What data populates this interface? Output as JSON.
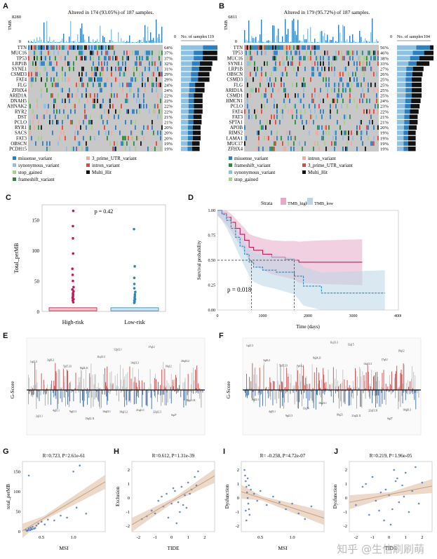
{
  "labels": {
    "A": "A",
    "B": "B",
    "C": "C",
    "D": "D",
    "E": "E",
    "F": "F",
    "G": "G",
    "H": "H",
    "I": "I",
    "J": "J"
  },
  "panelA": {
    "title": "Altered in 174 (93.05%) of 187 samples.",
    "tmb_label": "TMB",
    "tmb_max": "8280",
    "tmb_min": "0",
    "nos_label": "No. of samples",
    "nos_min": "0",
    "nos_max": "119",
    "genes": [
      "TTN",
      "MUC16",
      "TP53",
      "LRP1B",
      "SYNE1",
      "CSMD3",
      "FAT4",
      "FLG",
      "ZFHX4",
      "ARID1A",
      "DNAH5",
      "AHNAK2",
      "RYR2",
      "DST",
      "PCLO",
      "RYR1",
      "SACS",
      "FAT3",
      "OBSCN",
      "PCDH15"
    ],
    "pcts": [
      "64%",
      "37%",
      "37%",
      "32%",
      "31%",
      "29%",
      "29%",
      "24%",
      "24%",
      "22%",
      "22%",
      "22%",
      "22%",
      "21%",
      "21%",
      "20%",
      "20%",
      "20%",
      "19%",
      "19%"
    ],
    "legend": [
      "missense_variant",
      "3_prime_UTR_variant",
      "synonymous_variant",
      "intron_variant",
      "stop_gained",
      "Multi_Hit",
      "frameshift_variant"
    ]
  },
  "panelB": {
    "title": "Altered in 179 (95.72%) of 187 samples.",
    "tmb_label": "TMB",
    "tmb_max": "6811",
    "tmb_min": "0",
    "nos_label": "No. of samples",
    "nos_min": "0",
    "nos_max": "104",
    "genes": [
      "TTN",
      "TP53",
      "MUC16",
      "SYNE1",
      "LRP1B",
      "OBSCN",
      "CSMD3",
      "FLG",
      "ARID1A",
      "CSMD1",
      "HMCN1",
      "PCLO",
      "FAT4",
      "FAT3",
      "SPTA1",
      "APOB",
      "RIMS2",
      "LAMA1",
      "MUC17",
      "ZFHX4"
    ],
    "pcts": [
      "56%",
      "46%",
      "38%",
      "33%",
      "27%",
      "26%",
      "25%",
      "25%",
      "25%",
      "25%",
      "24%",
      "23%",
      "22%",
      "21%",
      "21%",
      "20%",
      "19%",
      "19%",
      "19%",
      "19%"
    ],
    "legend": [
      "missense_variant",
      "intron_variant",
      "frameshift_variant",
      "3_prime_UTR_variant",
      "synonymous_variant",
      "Multi_Hit",
      "stop_gained"
    ]
  },
  "colors": {
    "missense": "#2e7fbf",
    "utr": "#f4a9a0",
    "synonymous": "#8fc1e3",
    "intron": "#e8443a",
    "stop": "#a8d08d",
    "multi": "#111111",
    "frameshift": "#2e8b3e",
    "grey": "#c8c8c8",
    "high": "#c2185b",
    "low": "#2a86b8"
  },
  "chart_data": [
    {
      "panel": "C",
      "type": "box",
      "title": "p = 0.42",
      "ylabel": "Total_perMB",
      "categories": [
        "High-risk",
        "Low-risk"
      ],
      "ylim": [
        0,
        175
      ],
      "yticks": [
        "0",
        "50",
        "100",
        "150"
      ],
      "outliers": [
        [
          15,
          18,
          20,
          22,
          24,
          26,
          28,
          30,
          33,
          36,
          40,
          50,
          60,
          70,
          95,
          120,
          140,
          165
        ],
        [
          14,
          16,
          18,
          20,
          22,
          25,
          28,
          32,
          38,
          45,
          55,
          74,
          135
        ]
      ]
    },
    {
      "panel": "D",
      "type": "line",
      "title": "Strata",
      "ylabel": "Survival probability",
      "xlabel": "Time (days)",
      "legend": [
        "TMB_high",
        "TMB_low"
      ],
      "annotation": "p = 0.018",
      "xticks": [
        "0",
        "1000",
        "2000",
        "3000",
        "4000"
      ],
      "yticks": [
        "0.00",
        "0.25",
        "0.50",
        "0.75",
        "1.00"
      ],
      "xlim": [
        0,
        4000
      ],
      "ylim": [
        0,
        1
      ],
      "series": [
        {
          "name": "TMB_high",
          "x": [
            0,
            100,
            200,
            300,
            400,
            500,
            600,
            700,
            800,
            1000,
            1200,
            1500,
            1700,
            1800,
            2200,
            3200
          ],
          "y": [
            1,
            0.97,
            0.93,
            0.88,
            0.82,
            0.76,
            0.7,
            0.63,
            0.6,
            0.56,
            0.53,
            0.51,
            0.5,
            0.48,
            0.48,
            0.48
          ]
        },
        {
          "name": "TMB_low",
          "x": [
            0,
            100,
            200,
            300,
            400,
            500,
            600,
            700,
            800,
            1000,
            1300,
            1700,
            1900,
            2300,
            3000,
            3700
          ],
          "y": [
            1,
            0.96,
            0.9,
            0.82,
            0.73,
            0.64,
            0.56,
            0.48,
            0.43,
            0.4,
            0.38,
            0.34,
            0.24,
            0.17,
            0.17,
            0.17
          ]
        }
      ]
    },
    {
      "panel": "E",
      "type": "bar",
      "ylabel": "G-Score",
      "description": "GISTIC amplification/deletion profile",
      "peaks": [
        "1q21.3",
        "3q26.2",
        "5p15.33",
        "8q24.21",
        "11q13.3",
        "12p12.1",
        "14q13.3",
        "17q12",
        "19q12",
        "20q13.2",
        "2q31.1",
        "4q35.1",
        "9p21.3",
        "13q12.11",
        "16q23.1",
        "18q21.2",
        "21q21.1",
        "22q12.3",
        "6q27",
        "10q23.31"
      ]
    },
    {
      "panel": "F",
      "type": "bar",
      "ylabel": "G-Score",
      "description": "GISTIC amplification/deletion profile",
      "peaks": [
        "1q21.3",
        "3q26.2",
        "5p15.33",
        "7p11.2",
        "8q24.21",
        "11q13.3",
        "12q15",
        "14q13.3",
        "17q12",
        "19q12",
        "2q22.1",
        "4q35.1",
        "9p21.3",
        "13q34",
        "16q23.1",
        "18q23",
        "21q22.11",
        "22q13.31",
        "6q27",
        "10q26.3"
      ]
    },
    {
      "panel": "G",
      "type": "scatter",
      "title": "R=0.723, P=2.61e-61",
      "xlabel": "MSI",
      "ylabel": "total_perMB",
      "xticks": [
        "0.5",
        "1.0"
      ],
      "yticks": [
        "0",
        "50",
        "100",
        "150"
      ],
      "xlim": [
        0.2,
        1.5
      ],
      "ylim": [
        0,
        175
      ],
      "x": [
        0.25,
        0.28,
        0.3,
        0.32,
        0.33,
        0.35,
        0.36,
        0.38,
        0.4,
        0.42,
        0.45,
        0.5,
        0.55,
        0.6,
        0.7,
        0.8,
        0.9,
        1.0,
        1.05,
        1.1,
        1.2,
        0.3,
        0.27,
        0.34,
        0.29
      ],
      "y": [
        5,
        3,
        8,
        4,
        10,
        6,
        12,
        7,
        9,
        15,
        20,
        25,
        18,
        30,
        28,
        40,
        35,
        150,
        60,
        165,
        45,
        140,
        2,
        6,
        4
      ]
    },
    {
      "panel": "H",
      "type": "scatter",
      "title": "R=0.612, P=1.31e-39",
      "xlabel": "TIDE",
      "ylabel": "Exclusion",
      "xticks": [
        "-2",
        "-1",
        "0",
        "1",
        "2"
      ],
      "yticks": [
        "-2",
        "-1",
        "0",
        "1",
        "2"
      ],
      "xlim": [
        -2.4,
        2.6
      ],
      "ylim": [
        -2.4,
        2.6
      ],
      "x": [
        -1.8,
        -1.5,
        -1.2,
        -1,
        -0.8,
        -0.5,
        -0.3,
        0,
        0.2,
        0.4,
        0.6,
        0.8,
        1,
        1.2,
        1.4,
        1.6,
        0.5,
        -0.2,
        0.9,
        1.1,
        0.3,
        -0.6,
        1.5,
        0.1,
        0.7
      ],
      "y": [
        -1.5,
        -1.3,
        -0.9,
        -1.1,
        -0.2,
        -0.6,
        0.3,
        -0.4,
        0.5,
        -0.3,
        0.8,
        0.2,
        1.1,
        0.6,
        1.5,
        1.9,
        -1,
        -1.4,
        -0.7,
        0.3,
        -1.8,
        0.1,
        0.9,
        0.7,
        -0.5
      ]
    },
    {
      "panel": "I",
      "type": "scatter",
      "title": "R= -0.258, P=4.72e-07",
      "xlabel": "MSI",
      "ylabel": "Dysfunction",
      "xticks": [
        "0.5",
        "1.0"
      ],
      "yticks": [
        "-2",
        "-1",
        "0",
        "1",
        "2"
      ],
      "xlim": [
        0.2,
        1.5
      ],
      "ylim": [
        -2.4,
        2.6
      ],
      "x": [
        0.25,
        0.26,
        0.27,
        0.28,
        0.29,
        0.3,
        0.31,
        0.32,
        0.33,
        0.35,
        0.4,
        0.45,
        0.5,
        0.6,
        0.7,
        0.8,
        0.9,
        1,
        1.1,
        1.2,
        1.3,
        0.28,
        0.3,
        0.27,
        0.32
      ],
      "y": [
        2,
        1.6,
        1.2,
        0.8,
        0.4,
        0,
        -0.4,
        -0.8,
        -1.2,
        0.6,
        0.3,
        -0.2,
        0.5,
        -0.5,
        0.1,
        -0.3,
        -0.8,
        -0.4,
        -1.1,
        -1.5,
        -0.6,
        -1.6,
        1.4,
        -0.9,
        0.9
      ]
    },
    {
      "panel": "J",
      "type": "scatter",
      "title": "R=0.219, P=1.96e-05",
      "xlabel": "TIDE",
      "ylabel": "Dysfunction",
      "xticks": [
        "-2",
        "-1",
        "0",
        "1",
        "2"
      ],
      "yticks": [
        "-2",
        "-1",
        "0",
        "1",
        "2"
      ],
      "xlim": [
        -2.4,
        2.6
      ],
      "ylim": [
        -2.4,
        2.6
      ],
      "x": [
        -2,
        -1.6,
        -1.2,
        -1,
        -0.8,
        -0.5,
        -0.3,
        0,
        0.2,
        0.4,
        0.6,
        0.8,
        1,
        1.2,
        1.4,
        1.6,
        2,
        -0.6,
        0.3,
        0.9,
        -1.4,
        1.8,
        0.1,
        -0.2,
        0.5
      ],
      "y": [
        -0.5,
        0.8,
        -1.2,
        1.5,
        -0.2,
        0.4,
        -1.6,
        0.2,
        -0.8,
        1.2,
        -0.3,
        0.9,
        1.8,
        -1,
        0.5,
        2.2,
        1.1,
        -0.9,
        2,
        0.1,
        1,
        -0.4,
        -1.9,
        0.6,
        1.4
      ]
    }
  ],
  "watermark": "知乎 @生信刷刷萌"
}
